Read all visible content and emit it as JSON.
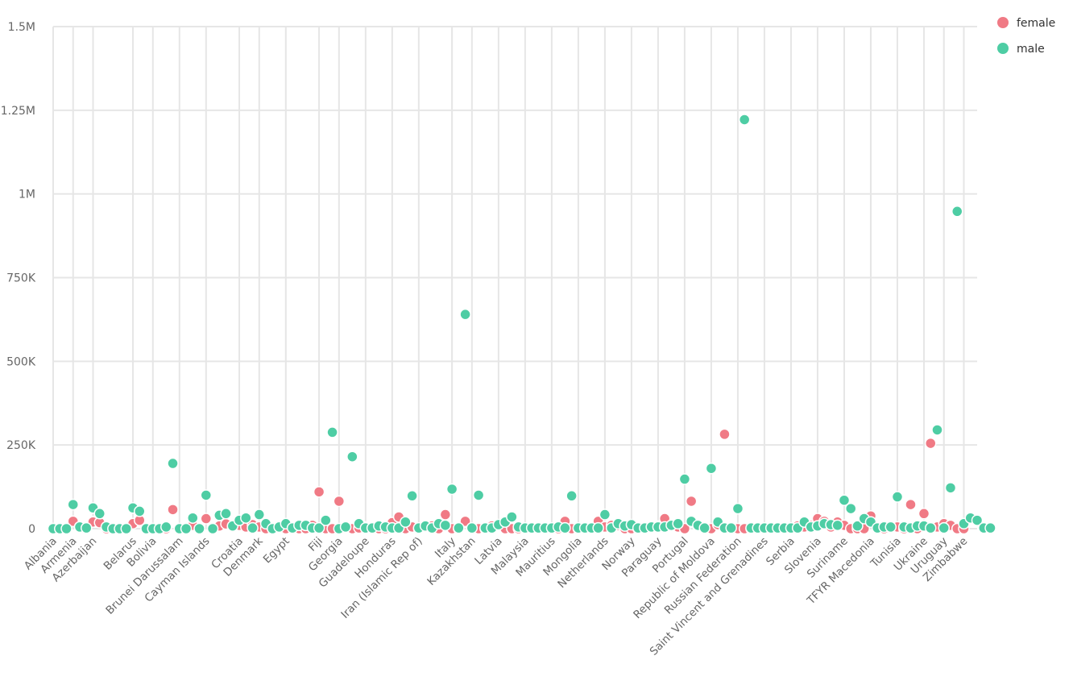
{
  "chart_data": {
    "type": "scatter",
    "title": "",
    "xlabel": "",
    "ylabel": "",
    "ylim": [
      0,
      1500000
    ],
    "yticks": [
      {
        "value": 0,
        "label": "0"
      },
      {
        "value": 250000,
        "label": "250K"
      },
      {
        "value": 500000,
        "label": "500K"
      },
      {
        "value": 750000,
        "label": "750K"
      },
      {
        "value": 1000000,
        "label": "1M"
      },
      {
        "value": 1250000,
        "label": "1.25M"
      },
      {
        "value": 1500000,
        "label": "1.5M"
      }
    ],
    "grid": true,
    "legend_position": "top-right",
    "category_count": 140,
    "x_tick_labels": [
      {
        "index": 0,
        "label": "Albania"
      },
      {
        "index": 3,
        "label": "Armenia"
      },
      {
        "index": 6,
        "label": "Azerbaijan"
      },
      {
        "index": 12,
        "label": "Belarus"
      },
      {
        "index": 15,
        "label": "Bolivia"
      },
      {
        "index": 19,
        "label": "Brunei Darussalam"
      },
      {
        "index": 23,
        "label": "Cayman Islands"
      },
      {
        "index": 28,
        "label": "Croatia"
      },
      {
        "index": 31,
        "label": "Denmark"
      },
      {
        "index": 35,
        "label": "Egypt"
      },
      {
        "index": 40,
        "label": "Fiji"
      },
      {
        "index": 43,
        "label": "Georgia"
      },
      {
        "index": 47,
        "label": "Guadeloupe"
      },
      {
        "index": 51,
        "label": "Honduras"
      },
      {
        "index": 55,
        "label": "Iran (Islamic Rep of)"
      },
      {
        "index": 60,
        "label": "Italy"
      },
      {
        "index": 63,
        "label": "Kazakhstan"
      },
      {
        "index": 67,
        "label": "Latvia"
      },
      {
        "index": 71,
        "label": "Malaysia"
      },
      {
        "index": 75,
        "label": "Mauritius"
      },
      {
        "index": 79,
        "label": "Mongolia"
      },
      {
        "index": 83,
        "label": "Netherlands"
      },
      {
        "index": 87,
        "label": "Norway"
      },
      {
        "index": 91,
        "label": "Paraguay"
      },
      {
        "index": 95,
        "label": "Portugal"
      },
      {
        "index": 99,
        "label": "Republic of Moldova"
      },
      {
        "index": 103,
        "label": "Russian Federation"
      },
      {
        "index": 107,
        "label": "Saint Vincent and Grenadines"
      },
      {
        "index": 111,
        "label": "Serbia"
      },
      {
        "index": 115,
        "label": "Slovenia"
      },
      {
        "index": 119,
        "label": "Suriname"
      },
      {
        "index": 123,
        "label": "TFYR Macedonia"
      },
      {
        "index": 127,
        "label": "Tunisia"
      },
      {
        "index": 131,
        "label": "Ukraine"
      },
      {
        "index": 134,
        "label": "Uruguay"
      },
      {
        "index": 137,
        "label": "Zimbabwe"
      }
    ],
    "series": [
      {
        "name": "female",
        "color": "#f07a85",
        "values": [
          0,
          0,
          0,
          22000,
          5000,
          0,
          20000,
          18000,
          0,
          0,
          0,
          0,
          15000,
          25000,
          0,
          0,
          0,
          0,
          57000,
          0,
          0,
          10000,
          0,
          30000,
          0,
          8000,
          14000,
          5000,
          10000,
          5000,
          12000,
          5000,
          0,
          0,
          8000,
          0,
          5000,
          0,
          0,
          10000,
          110000,
          0,
          0,
          82000,
          5000,
          0,
          2000,
          5000,
          0,
          0,
          0,
          18000,
          35000,
          0,
          5000,
          0,
          5000,
          8000,
          0,
          42000,
          0,
          0,
          22000,
          0,
          0,
          0,
          8000,
          10000,
          0,
          0,
          0,
          0,
          0,
          0,
          0,
          0,
          0,
          22000,
          0,
          0,
          0,
          0,
          22000,
          5000,
          10000,
          10000,
          0,
          0,
          0,
          0,
          8000,
          8000,
          30000,
          10000,
          5000,
          0,
          82000,
          8000,
          0,
          0,
          12000,
          282000,
          0,
          0,
          0,
          0,
          0,
          0,
          0,
          0,
          0,
          0,
          8000,
          5000,
          10000,
          30000,
          22000,
          5000,
          20000,
          10000,
          0,
          0,
          0,
          38000,
          0,
          0,
          5000,
          5000,
          0,
          72000,
          0,
          45000,
          255000,
          5000,
          15000,
          10000,
          0,
          0
        ]
      },
      {
        "name": "male",
        "color": "#4ecda4",
        "values": [
          0,
          0,
          0,
          72000,
          5000,
          2000,
          62000,
          45000,
          5000,
          0,
          0,
          0,
          62000,
          52000,
          0,
          0,
          0,
          5000,
          195000,
          0,
          0,
          32000,
          0,
          100000,
          0,
          40000,
          45000,
          8000,
          25000,
          32000,
          2000,
          42000,
          15000,
          0,
          5000,
          15000,
          2000,
          10000,
          10000,
          2000,
          2000,
          25000,
          288000,
          0,
          5000,
          215000,
          15000,
          2000,
          2000,
          8000,
          5000,
          2000,
          2000,
          20000,
          98000,
          2000,
          8000,
          2000,
          15000,
          10000,
          118000,
          2000,
          640000,
          2000,
          100000,
          2000,
          2000,
          12000,
          20000,
          35000,
          5000,
          2000,
          2000,
          2000,
          2000,
          2000,
          5000,
          2000,
          98000,
          2000,
          2000,
          2000,
          2000,
          42000,
          2000,
          15000,
          8000,
          12000,
          2000,
          2000,
          5000,
          5000,
          5000,
          10000,
          15000,
          148000,
          22000,
          10000,
          2000,
          180000,
          20000,
          2000,
          2000,
          60000,
          1222000,
          2000,
          2000,
          2000,
          2000,
          2000,
          2000,
          2000,
          2000,
          20000,
          5000,
          8000,
          15000,
          12000,
          10000,
          85000,
          60000,
          8000,
          30000,
          20000,
          2000,
          5000,
          5000,
          95000,
          5000,
          2000,
          8000,
          8000,
          2000,
          295000,
          2000,
          122000,
          948000,
          15000,
          32000,
          25000,
          2000,
          2000
        ]
      }
    ]
  }
}
